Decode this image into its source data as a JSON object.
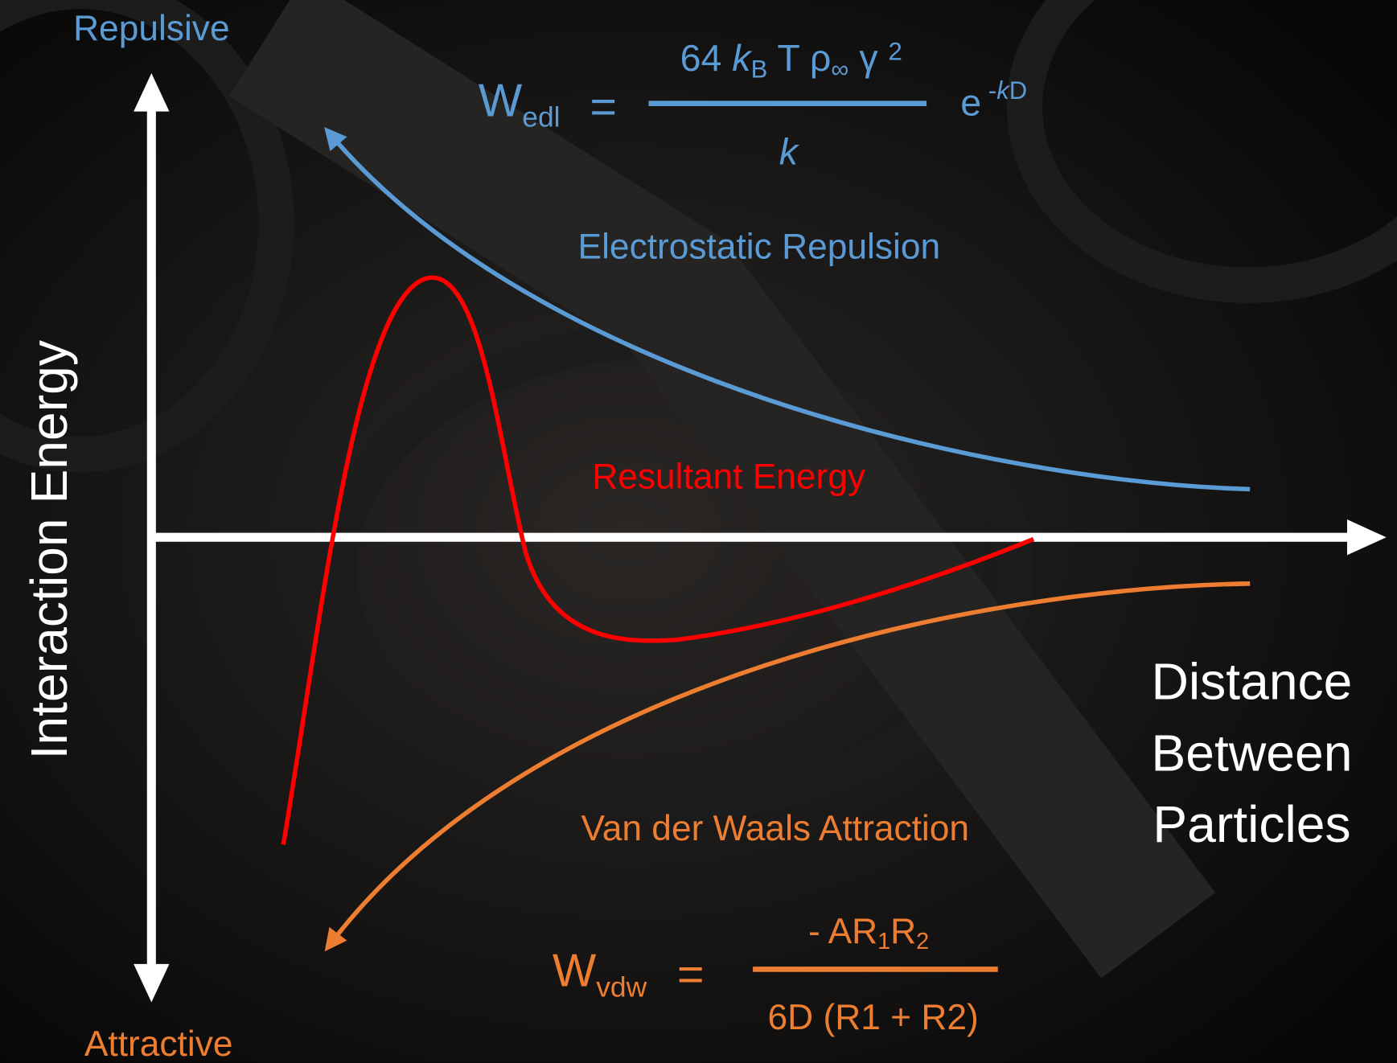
{
  "axes": {
    "y_top": "Repulsive",
    "y_bottom": "Attractive",
    "y_title": "Interaction Energy",
    "x_title": [
      "Distance",
      "Between",
      "Particles"
    ]
  },
  "curves": [
    {
      "label": "Electrostatic Repulsion"
    },
    {
      "label": "Resultant Energy"
    },
    {
      "label": "Van der Waals Attraction"
    }
  ],
  "formulas": {
    "edl": {
      "symbol": "W",
      "subscript": "edl",
      "equals": "=",
      "numerator": [
        "64 ",
        "k",
        "B",
        " T ρ",
        "∞",
        " γ ",
        "2"
      ],
      "denominator": "k",
      "base": "e",
      "exponent": [
        "-",
        "k",
        "D"
      ]
    },
    "vdw": {
      "symbol": "W",
      "subscript": "vdw",
      "equals": "=",
      "numerator": [
        "- AR",
        "1",
        "R",
        "2"
      ],
      "denominator": "6D (R1 + R2)"
    }
  }
}
